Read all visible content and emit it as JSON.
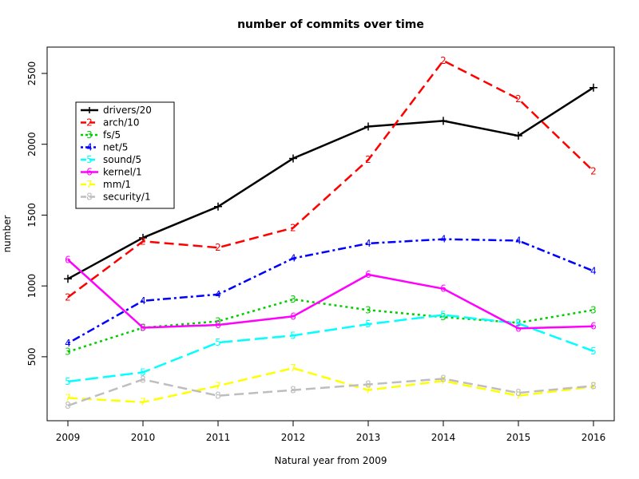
{
  "chart_data": {
    "type": "line",
    "title": "number of commits over time",
    "xlabel": "Natural year from 2009",
    "ylabel": "number",
    "x": [
      2009,
      2010,
      2011,
      2012,
      2013,
      2014,
      2015,
      2016
    ],
    "x_tick_labels": [
      "2009",
      "2010",
      "2011",
      "2012",
      "2013",
      "2014",
      "2015",
      "2016"
    ],
    "xlim": [
      2009,
      2016
    ],
    "y_ticks": [
      500,
      1000,
      1500,
      2000,
      2500
    ],
    "y_tick_labels": [
      "500",
      "1000",
      "1500",
      "2000",
      "2500"
    ],
    "ylim": [
      150,
      2590
    ],
    "grid": false,
    "legend_position": "top-left",
    "series": [
      {
        "name": "drivers/20",
        "marker": "+",
        "color": "#000000",
        "dash": "solid",
        "values": [
          1050,
          1340,
          1560,
          1900,
          2125,
          2165,
          2060,
          2400
        ]
      },
      {
        "name": "arch/10",
        "marker": "2",
        "color": "#ff0000",
        "dash": "dashed",
        "values": [
          920,
          1315,
          1270,
          1410,
          1890,
          2590,
          2320,
          1810
        ]
      },
      {
        "name": "fs/5",
        "marker": "3",
        "color": "#00cd00",
        "dash": "dotted",
        "values": [
          535,
          705,
          750,
          905,
          830,
          780,
          740,
          830
        ]
      },
      {
        "name": "net/5",
        "marker": "4",
        "color": "#0000ff",
        "dash": "dotdash",
        "values": [
          595,
          895,
          940,
          1195,
          1300,
          1330,
          1320,
          1105
        ]
      },
      {
        "name": "sound/5",
        "marker": "5",
        "color": "#00ffff",
        "dash": "longdash",
        "values": [
          325,
          390,
          600,
          650,
          730,
          795,
          735,
          540
        ]
      },
      {
        "name": "kernel/1",
        "marker": "6",
        "color": "#ff00ff",
        "dash": "solid",
        "values": [
          1185,
          705,
          725,
          785,
          1080,
          980,
          700,
          715
        ]
      },
      {
        "name": "mm/1",
        "marker": "7",
        "color": "#ffff00",
        "dash": "dashed",
        "values": [
          210,
          180,
          295,
          420,
          265,
          330,
          225,
          290
        ]
      },
      {
        "name": "security/1",
        "marker": "8",
        "color": "#bebebe",
        "dash": "dashed",
        "values": [
          155,
          340,
          225,
          265,
          305,
          345,
          245,
          295
        ]
      }
    ]
  }
}
